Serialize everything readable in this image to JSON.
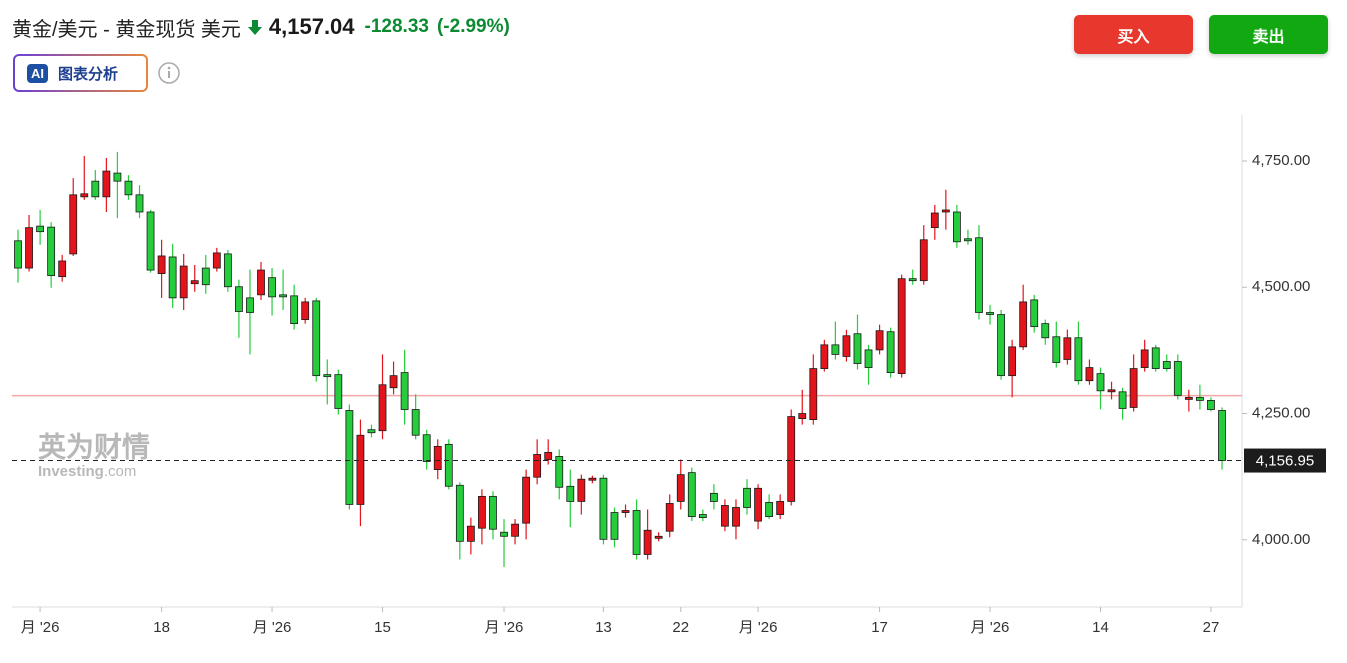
{
  "header": {
    "instrument": "黄金/美元 - 黄金现货 美元",
    "price": "4,157.04",
    "change": "-128.33",
    "change_pct": "(-2.99%)"
  },
  "buttons": {
    "buy": "买入",
    "sell": "卖出"
  },
  "ai": {
    "badge": "AI",
    "label": "图表分析"
  },
  "watermark": {
    "cn": "英为财情",
    "en": "Investing",
    ".com": ".com"
  },
  "chart_data": {
    "type": "candlestick",
    "up_color": "#e3141c",
    "down_color": "#25cc3c",
    "grid": false,
    "categories": [
      null,
      null,
      "月 '26",
      null,
      null,
      null,
      null,
      null,
      null,
      null,
      null,
      null,
      null,
      "18",
      null,
      null,
      null,
      null,
      null,
      null,
      null,
      null,
      null,
      "月 '26",
      null,
      null,
      null,
      null,
      null,
      null,
      null,
      null,
      null,
      "15",
      null,
      null,
      null,
      null,
      null,
      null,
      null,
      null,
      null,
      null,
      "月 '26",
      null,
      null,
      null,
      null,
      null,
      null,
      null,
      null,
      "13",
      null,
      null,
      null,
      null,
      null,
      null,
      "22",
      null,
      null,
      null,
      null,
      null,
      null,
      "月 '26",
      null,
      null,
      null,
      null,
      null,
      null,
      null,
      null,
      null,
      null,
      "17",
      null,
      null,
      null,
      null,
      null,
      null,
      null,
      null,
      null,
      "月 '26",
      null,
      null,
      null,
      null,
      null,
      null,
      null,
      null,
      null,
      "14",
      null,
      null,
      null,
      null,
      null,
      null,
      null,
      null,
      null,
      "27",
      null
    ],
    "open": [
      4592,
      4538,
      4621,
      4619,
      4521,
      4566,
      4679,
      4710,
      4679,
      4726,
      4710,
      4683,
      4649,
      4527,
      4560,
      4479,
      4507,
      4538,
      4538,
      4566,
      4501,
      4479,
      4485,
      4519,
      4485,
      4483,
      4436,
      4473,
      4327,
      4327,
      4256,
      4070,
      4218,
      4216,
      4301,
      4331,
      4258,
      4208,
      4139,
      4189,
      4108,
      3997,
      4023,
      4086,
      4015,
      4007,
      4033,
      4124,
      4159,
      4165,
      4106,
      4076,
      4118,
      4122,
      4054,
      4054,
      4058,
      3971,
      4003,
      4017,
      4076,
      4133,
      4050,
      4092,
      4027,
      4027,
      4102,
      4037,
      4074,
      4050,
      4076,
      4240,
      4238,
      4339,
      4386,
      4363,
      4408,
      4376,
      4376,
      4412,
      4329,
      4517,
      4513,
      4618,
      4649,
      4649,
      4596,
      4598,
      4450,
      4446,
      4325,
      4382,
      4475,
      4428,
      4402,
      4357,
      4400,
      4315,
      4329,
      4293,
      4293,
      4262,
      4341,
      4380,
      4353,
      4353,
      4278,
      4282,
      4276,
      4256
    ],
    "high": [
      4614,
      4643,
      4653,
      4629,
      4564,
      4716,
      4760,
      4732,
      4756,
      4768,
      4722,
      4702,
      4653,
      4594,
      4586,
      4566,
      4544,
      4564,
      4578,
      4574,
      4515,
      4535,
      4550,
      4538,
      4535,
      4505,
      4479,
      4479,
      4357,
      4337,
      4268,
      4238,
      4228,
      4367,
      4353,
      4376,
      4288,
      4218,
      4199,
      4199,
      4114,
      4044,
      4100,
      4096,
      4041,
      4041,
      4139,
      4199,
      4199,
      4179,
      4139,
      4129,
      4127,
      4129,
      4064,
      4070,
      4080,
      4060,
      4015,
      4090,
      4159,
      4143,
      4060,
      4110,
      4080,
      4080,
      4120,
      4110,
      4090,
      4090,
      4258,
      4297,
      4367,
      4396,
      4432,
      4416,
      4446,
      4386,
      4426,
      4420,
      4525,
      4535,
      4623,
      4663,
      4693,
      4663,
      4614,
      4623,
      4465,
      4455,
      4396,
      4505,
      4485,
      4436,
      4432,
      4416,
      4432,
      4357,
      4341,
      4313,
      4301,
      4367,
      4396,
      4386,
      4367,
      4367,
      4297,
      4307,
      4282,
      4262
    ],
    "low": [
      4509,
      4531,
      4584,
      4499,
      4511,
      4562,
      4673,
      4673,
      4649,
      4637,
      4673,
      4637,
      4529,
      4479,
      4459,
      4455,
      4491,
      4487,
      4531,
      4491,
      4400,
      4367,
      4475,
      4444,
      4455,
      4416,
      4428,
      4313,
      4268,
      4248,
      4060,
      4027,
      4203,
      4199,
      4288,
      4228,
      4199,
      4139,
      4120,
      4100,
      3961,
      3971,
      3991,
      4001,
      3946,
      3991,
      4001,
      4110,
      4149,
      4080,
      4025,
      4050,
      4112,
      3991,
      3985,
      4044,
      3961,
      3961,
      3997,
      4005,
      4060,
      4037,
      4037,
      4060,
      4017,
      4001,
      4050,
      4021,
      4041,
      4041,
      4068,
      4228,
      4228,
      4333,
      4357,
      4353,
      4337,
      4307,
      4367,
      4321,
      4321,
      4505,
      4505,
      4594,
      4614,
      4578,
      4584,
      4436,
      4426,
      4317,
      4282,
      4376,
      4410,
      4386,
      4341,
      4347,
      4307,
      4307,
      4258,
      4278,
      4238,
      4254,
      4333,
      4333,
      4333,
      4278,
      4254,
      4258,
      4254,
      4139
    ],
    "close": [
      4538,
      4618,
      4610,
      4523,
      4552,
      4683,
      4685,
      4679,
      4730,
      4710,
      4683,
      4649,
      4534,
      4562,
      4479,
      4542,
      4513,
      4505,
      4568,
      4501,
      4452,
      4450,
      4534,
      4481,
      4481,
      4428,
      4471,
      4325,
      4323,
      4260,
      4070,
      4207,
      4212,
      4307,
      4325,
      4258,
      4207,
      4155,
      4185,
      4106,
      3997,
      4027,
      4086,
      4021,
      4007,
      4031,
      4124,
      4169,
      4173,
      4104,
      4076,
      4120,
      4122,
      4001,
      4001,
      4058,
      3971,
      4019,
      4007,
      4072,
      4129,
      4046,
      4044,
      4076,
      4068,
      4064,
      4064,
      4102,
      4046,
      4076,
      4244,
      4250,
      4339,
      4386,
      4367,
      4404,
      4349,
      4341,
      4414,
      4331,
      4517,
      4513,
      4594,
      4647,
      4653,
      4590,
      4592,
      4450,
      4446,
      4325,
      4382,
      4471,
      4422,
      4400,
      4351,
      4400,
      4315,
      4341,
      4295,
      4297,
      4260,
      4339,
      4376,
      4339,
      4339,
      4286,
      4282,
      4276,
      4258,
      4157
    ],
    "ylim": [
      3867,
      4841
    ],
    "yticks": [
      {
        "value": 4000,
        "label": "4,000.00"
      },
      {
        "value": 4250,
        "label": "4,250.00"
      },
      {
        "value": 4500,
        "label": "4,500.00"
      },
      {
        "value": 4750,
        "label": "4,750.00"
      }
    ],
    "previous_close": 4285.37,
    "previous_close_color": "#f4a6a6",
    "last_price": {
      "value": 4156.95,
      "label": "4,156.95"
    }
  }
}
